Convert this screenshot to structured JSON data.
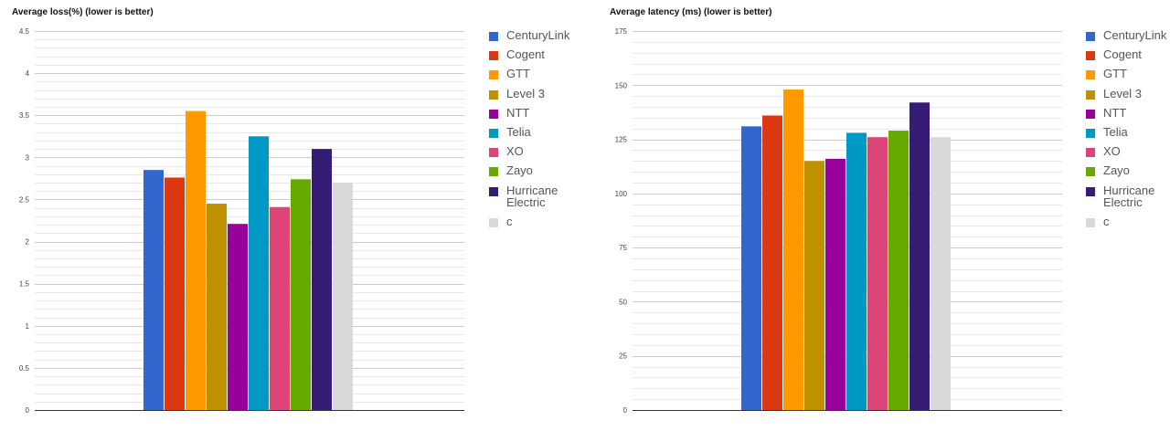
{
  "chart_data": [
    {
      "type": "bar",
      "title": "Average loss(%) (lower is better)",
      "xlabel": "",
      "ylabel": "",
      "ylim": [
        0,
        4.5
      ],
      "yticks": [
        "0",
        "0.5",
        "1",
        "1.5",
        "2",
        "2.5",
        "3",
        "3.5",
        "4",
        "4.5"
      ],
      "grid": true,
      "legend_position": "right",
      "series": [
        {
          "name": "CenturyLink",
          "color": "#3366cc",
          "value": 2.85
        },
        {
          "name": "Cogent",
          "color": "#dc3912",
          "value": 2.76
        },
        {
          "name": "GTT",
          "color": "#ff9900",
          "value": 3.55
        },
        {
          "name": "Level 3",
          "color": "#bf9000",
          "value": 2.45
        },
        {
          "name": "NTT",
          "color": "#990099",
          "value": 2.21
        },
        {
          "name": "Telia",
          "color": "#0099c6",
          "value": 3.25
        },
        {
          "name": "XO",
          "color": "#dd4477",
          "value": 2.41
        },
        {
          "name": "Zayo",
          "color": "#66aa00",
          "value": 2.74
        },
        {
          "name": "Hurricane Electric",
          "color": "#351c75",
          "value": 3.1
        },
        {
          "name": "c",
          "color": "#d9d9d9",
          "value": 2.7
        }
      ]
    },
    {
      "type": "bar",
      "title": "Average latency (ms) (lower is better)",
      "xlabel": "",
      "ylabel": "",
      "ylim": [
        0,
        175
      ],
      "yticks": [
        "0",
        "25",
        "50",
        "75",
        "100",
        "125",
        "150",
        "175"
      ],
      "grid": true,
      "legend_position": "right",
      "series": [
        {
          "name": "CenturyLink",
          "color": "#3366cc",
          "value": 131
        },
        {
          "name": "Cogent",
          "color": "#dc3912",
          "value": 136
        },
        {
          "name": "GTT",
          "color": "#ff9900",
          "value": 148
        },
        {
          "name": "Level 3",
          "color": "#bf9000",
          "value": 115
        },
        {
          "name": "NTT",
          "color": "#990099",
          "value": 116
        },
        {
          "name": "Telia",
          "color": "#0099c6",
          "value": 128
        },
        {
          "name": "XO",
          "color": "#dd4477",
          "value": 126
        },
        {
          "name": "Zayo",
          "color": "#66aa00",
          "value": 129
        },
        {
          "name": "Hurricane Electric",
          "color": "#351c75",
          "value": 142
        },
        {
          "name": "c",
          "color": "#d9d9d9",
          "value": 126
        }
      ]
    }
  ]
}
